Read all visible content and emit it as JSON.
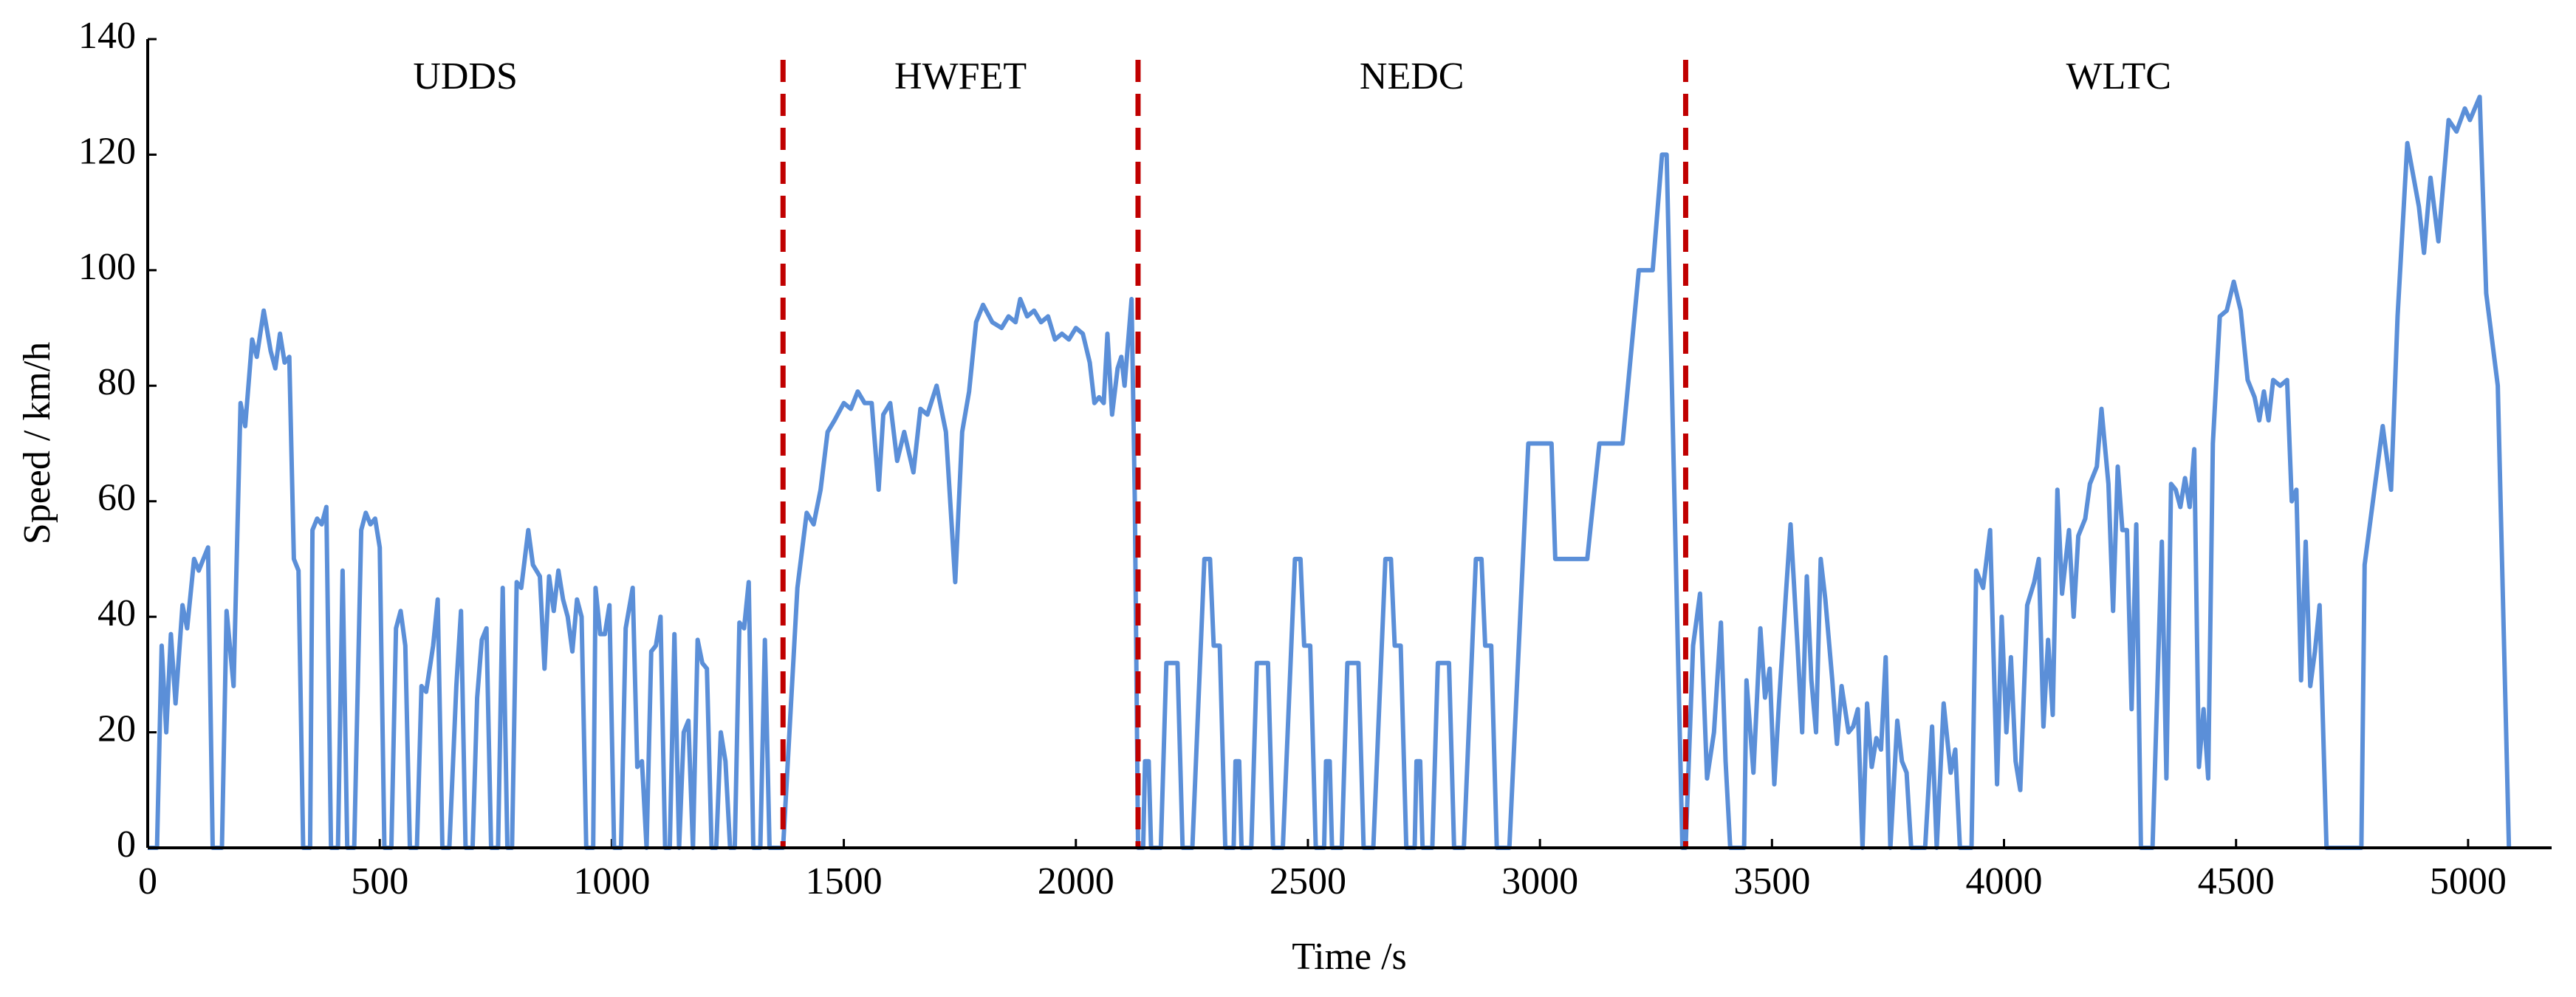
{
  "chart_data": {
    "type": "line",
    "xlabel": "Time /s",
    "ylabel": "Speed / km/h",
    "xlim": [
      0,
      5180
    ],
    "xticks": [
      0,
      500,
      1000,
      1500,
      2000,
      2500,
      3000,
      3500,
      4000,
      4500,
      5000
    ],
    "ylim": [
      0,
      140
    ],
    "yticks": [
      0,
      20,
      40,
      60,
      80,
      100,
      120,
      140
    ],
    "dividers": [
      1369,
      2134,
      3314
    ],
    "divider_color": "#c00000",
    "regions": [
      "UDDS",
      "HWFET",
      "NEDC",
      "WLTC"
    ],
    "x": [
      0,
      20,
      30,
      40,
      50,
      60,
      75,
      85,
      100,
      110,
      120,
      130,
      140,
      160,
      170,
      185,
      200,
      210,
      225,
      235,
      250,
      265,
      275,
      285,
      295,
      305,
      315,
      325,
      335,
      350,
      355,
      365,
      375,
      385,
      395,
      410,
      420,
      430,
      445,
      460,
      470,
      480,
      490,
      500,
      510,
      525,
      535,
      545,
      555,
      565,
      580,
      590,
      600,
      615,
      625,
      635,
      650,
      665,
      675,
      685,
      700,
      710,
      720,
      730,
      740,
      755,
      765,
      775,
      785,
      795,
      805,
      820,
      830,
      845,
      855,
      865,
      875,
      885,
      895,
      905,
      915,
      925,
      935,
      945,
      960,
      965,
      975,
      985,
      995,
      1005,
      1020,
      1030,
      1045,
      1055,
      1065,
      1075,
      1085,
      1095,
      1105,
      1115,
      1125,
      1135,
      1145,
      1155,
      1165,
      1175,
      1185,
      1195,
      1205,
      1215,
      1225,
      1235,
      1245,
      1255,
      1265,
      1275,
      1285,
      1295,
      1305,
      1320,
      1330,
      1340,
      1369,
      1400,
      1420,
      1435,
      1450,
      1465,
      1480,
      1500,
      1515,
      1530,
      1545,
      1560,
      1575,
      1585,
      1600,
      1615,
      1630,
      1650,
      1665,
      1680,
      1700,
      1720,
      1740,
      1755,
      1770,
      1785,
      1800,
      1820,
      1840,
      1855,
      1870,
      1880,
      1895,
      1910,
      1925,
      1940,
      1955,
      1970,
      1985,
      2000,
      2015,
      2030,
      2040,
      2050,
      2060,
      2068,
      2078,
      2090,
      2098,
      2105,
      2120,
      2127,
      2134,
      2145,
      2149,
      2157,
      2162,
      2183,
      2195,
      2219,
      2230,
      2251,
      2277,
      2289,
      2297,
      2310,
      2322,
      2329,
      2340,
      2344,
      2352,
      2357,
      2378,
      2390,
      2414,
      2425,
      2446,
      2472,
      2484,
      2492,
      2505,
      2517,
      2524,
      2535,
      2539,
      2547,
      2552,
      2573,
      2585,
      2609,
      2620,
      2641,
      2667,
      2679,
      2687,
      2700,
      2712,
      2719,
      2730,
      2734,
      2742,
      2747,
      2768,
      2780,
      2804,
      2815,
      2836,
      2862,
      2874,
      2882,
      2895,
      2907,
      2934,
      2975,
      3025,
      3033,
      3102,
      3128,
      3178,
      3213,
      3243,
      3263,
      3273,
      3307,
      3314,
      3330,
      3345,
      3360,
      3375,
      3390,
      3400,
      3410,
      3440,
      3445,
      3460,
      3475,
      3485,
      3495,
      3505,
      3515,
      3530,
      3540,
      3555,
      3565,
      3575,
      3585,
      3595,
      3605,
      3615,
      3630,
      3640,
      3650,
      3665,
      3675,
      3685,
      3695,
      3705,
      3715,
      3725,
      3735,
      3745,
      3755,
      3770,
      3780,
      3790,
      3800,
      3830,
      3845,
      3855,
      3870,
      3885,
      3895,
      3905,
      3930,
      3940,
      3955,
      3970,
      3985,
      3995,
      4005,
      4015,
      4025,
      4035,
      4050,
      4065,
      4075,
      4085,
      4095,
      4105,
      4115,
      4125,
      4140,
      4150,
      4160,
      4175,
      4185,
      4200,
      4210,
      4225,
      4235,
      4245,
      4255,
      4265,
      4275,
      4285,
      4295,
      4320,
      4340,
      4350,
      4360,
      4370,
      4380,
      4390,
      4400,
      4410,
      4420,
      4430,
      4440,
      4450,
      4465,
      4480,
      4495,
      4510,
      4525,
      4540,
      4550,
      4560,
      4570,
      4580,
      4595,
      4610,
      4620,
      4630,
      4640,
      4650,
      4660,
      4670,
      4680,
      4695,
      4770,
      4777,
      4816,
      4834,
      4848,
      4869,
      4894,
      4905,
      4919,
      4936,
      4958,
      4975,
      4993,
      5004,
      5025,
      5039,
      5064,
      5088
    ],
    "series": [
      {
        "name": "Speed",
        "color": "#5b8fd8",
        "values": [
          0,
          0,
          35,
          20,
          37,
          25,
          42,
          38,
          50,
          48,
          50,
          52,
          0,
          0,
          41,
          28,
          77,
          73,
          88,
          85,
          93,
          86,
          83,
          89,
          84,
          85,
          50,
          48,
          0,
          0,
          55,
          57,
          56,
          59,
          0,
          0,
          48,
          0,
          0,
          55,
          58,
          56,
          57,
          52,
          0,
          0,
          38,
          41,
          35,
          0,
          0,
          28,
          27,
          35,
          43,
          0,
          0,
          28,
          41,
          0,
          0,
          26,
          36,
          38,
          0,
          0,
          45,
          0,
          0,
          46,
          45,
          55,
          49,
          47,
          31,
          47,
          41,
          48,
          43,
          40,
          34,
          43,
          40,
          0,
          0,
          45,
          37,
          37,
          42,
          0,
          0,
          38,
          45,
          14,
          15,
          0,
          34,
          35,
          40,
          0,
          0,
          37,
          0,
          20,
          22,
          0,
          36,
          32,
          31,
          0,
          0,
          20,
          15,
          0,
          0,
          39,
          38,
          46,
          0,
          0,
          36,
          0,
          0,
          45,
          58,
          56,
          62,
          72,
          74,
          77,
          76,
          79,
          77,
          77,
          62,
          75,
          77,
          67,
          72,
          65,
          76,
          75,
          80,
          72,
          46,
          72,
          79,
          91,
          94,
          91,
          90,
          92,
          91,
          95,
          92,
          93,
          91,
          92,
          88,
          89,
          88,
          90,
          89,
          84,
          77,
          78,
          77,
          89,
          75,
          83,
          85,
          80,
          95,
          60,
          0,
          0,
          15,
          15,
          0,
          0,
          32,
          32,
          0,
          0,
          50,
          50,
          35,
          35,
          0,
          0,
          0,
          15,
          15,
          0,
          0,
          32,
          32,
          0,
          0,
          50,
          50,
          35,
          35,
          0,
          0,
          0,
          15,
          15,
          0,
          0,
          32,
          32,
          0,
          0,
          50,
          50,
          35,
          35,
          0,
          0,
          0,
          15,
          15,
          0,
          0,
          32,
          32,
          0,
          0,
          50,
          50,
          35,
          35,
          0,
          0,
          70,
          70,
          50,
          50,
          70,
          70,
          100,
          100,
          120,
          120,
          0,
          0,
          35,
          44,
          12,
          20,
          39,
          15,
          0,
          0,
          29,
          13,
          38,
          26,
          31,
          11,
          25,
          44,
          56,
          35,
          20,
          47,
          29,
          20,
          50,
          43,
          29,
          18,
          28,
          20,
          21,
          24,
          0,
          25,
          14,
          19,
          17,
          33,
          0,
          22,
          15,
          13,
          0,
          0,
          21,
          0,
          25,
          13,
          17,
          0,
          0,
          48,
          45,
          55,
          11,
          40,
          20,
          33,
          15,
          10,
          42,
          46,
          50,
          21,
          36,
          23,
          62,
          44,
          55,
          40,
          54,
          57,
          63,
          66,
          76,
          63,
          41,
          66,
          55,
          55,
          24,
          56,
          0,
          0,
          53,
          12,
          63,
          62,
          59,
          64,
          59,
          69,
          14,
          24,
          12,
          70,
          92,
          93,
          98,
          93,
          81,
          78,
          74,
          79,
          74,
          81,
          80,
          81,
          60,
          62,
          29,
          53,
          28,
          34,
          42,
          0,
          0,
          49,
          73,
          62,
          92,
          122,
          111,
          103,
          116,
          105,
          126,
          124,
          128,
          126,
          130,
          96,
          80,
          0
        ]
      }
    ]
  }
}
